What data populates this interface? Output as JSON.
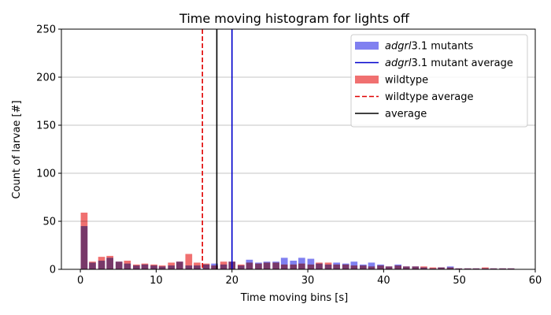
{
  "chart_data": {
    "type": "bar",
    "title": "Time moving histogram for lights off",
    "xlabel": "Time moving bins [s]",
    "ylabel": "Count of larvae [#]",
    "xlim": [
      -2.5,
      60
    ],
    "ylim": [
      0,
      250
    ],
    "xticks": [
      0,
      10,
      20,
      30,
      40,
      50,
      60
    ],
    "yticks": [
      0,
      50,
      100,
      150,
      200,
      250
    ],
    "grid": "horizontal",
    "legend_position": "top-right",
    "bin_width": 1,
    "bins": [
      0.5,
      1.6,
      2.8,
      3.9,
      5.1,
      6.2,
      7.4,
      8.5,
      9.7,
      10.8,
      12.0,
      13.1,
      14.3,
      15.4,
      16.6,
      17.7,
      18.9,
      20.0,
      21.2,
      22.3,
      23.5,
      24.6,
      25.8,
      26.9,
      28.1,
      29.2,
      30.4,
      31.5,
      32.7,
      33.8,
      35.0,
      36.1,
      37.3,
      38.4,
      39.6,
      40.7,
      41.9,
      43.0,
      44.2,
      45.3,
      46.5,
      47.6,
      48.8,
      49.9,
      51.1,
      52.2,
      53.4,
      54.5,
      55.7,
      56.8
    ],
    "series": [
      {
        "name": "mutants",
        "legend_label": "adgrl3.1 mutants",
        "legend_italic": "adgrl",
        "legend_rest": "3.1 mutants",
        "color": "#8080f0",
        "values": [
          45,
          7,
          9,
          12,
          8,
          6,
          4,
          5,
          4,
          3,
          4,
          8,
          4,
          4,
          5,
          6,
          5,
          8,
          4,
          10,
          7,
          8,
          8,
          12,
          9,
          12,
          11,
          6,
          5,
          7,
          6,
          8,
          5,
          7,
          5,
          3,
          5,
          3,
          3,
          2,
          1,
          2,
          3,
          1,
          1,
          1,
          1,
          1,
          1,
          1
        ]
      },
      {
        "name": "wildtype",
        "legend_label": "wildtype",
        "color": "#f07070",
        "values": [
          59,
          8,
          13,
          14,
          8,
          9,
          5,
          6,
          5,
          4,
          7,
          8,
          16,
          7,
          6,
          4,
          8,
          8,
          5,
          7,
          6,
          7,
          7,
          5,
          5,
          6,
          5,
          7,
          7,
          5,
          5,
          4,
          4,
          3,
          4,
          3,
          4,
          3,
          3,
          3,
          2,
          2,
          2,
          1,
          1,
          1,
          2,
          1,
          1,
          1
        ]
      }
    ],
    "vlines": [
      {
        "name": "mutant-average",
        "legend_label": "adgrl3.1 mutant average",
        "legend_italic": "adgrl",
        "legend_rest": "3.1 mutant average",
        "x": 20.0,
        "color": "#0000cc",
        "dashed": false
      },
      {
        "name": "wildtype-average",
        "legend_label": "wildtype average",
        "x": 16.1,
        "color": "#e00000",
        "dashed": true
      },
      {
        "name": "average",
        "legend_label": "average",
        "x": 18.0,
        "color": "#000000",
        "dashed": false
      }
    ]
  }
}
